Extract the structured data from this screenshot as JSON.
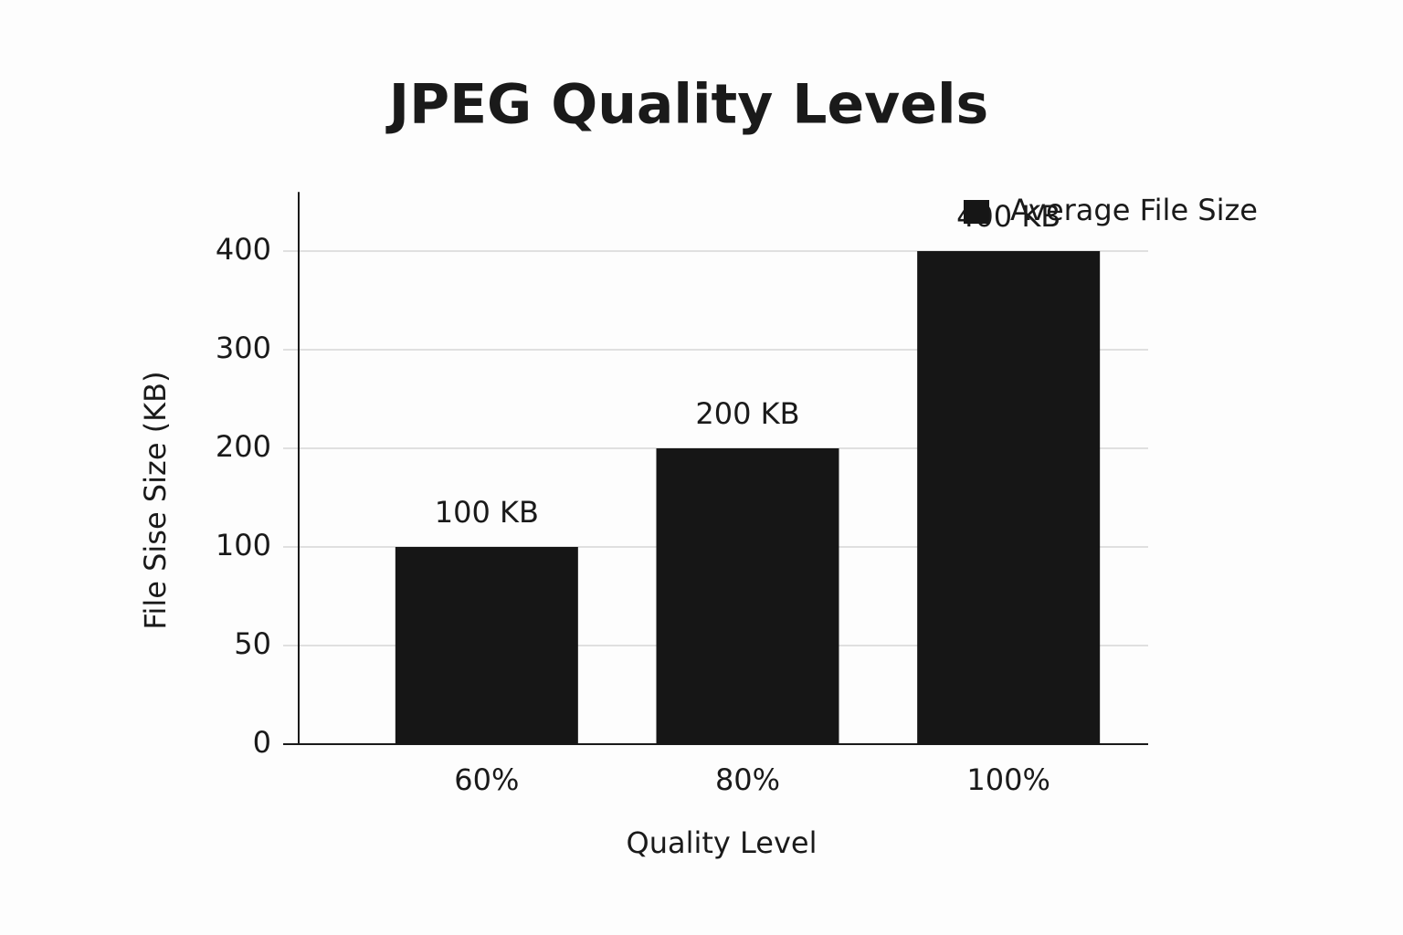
{
  "chart_data": {
    "type": "bar",
    "title": "JPEG Quality Levels",
    "x_label": "Quality Level",
    "y_label": "File Sise Size (KB)",
    "categories": [
      "60%",
      "80%",
      "100%"
    ],
    "series": [
      {
        "name": "Average File Size",
        "color": "#161616",
        "values": [
          100,
          200,
          400
        ],
        "value_labels": [
          "100 KB",
          "200 KB",
          "400 KB"
        ]
      }
    ],
    "ylim": [
      0,
      460
    ],
    "yticks": [
      0,
      50,
      100,
      200,
      300,
      400
    ],
    "grid": true,
    "legend": "top-right"
  }
}
